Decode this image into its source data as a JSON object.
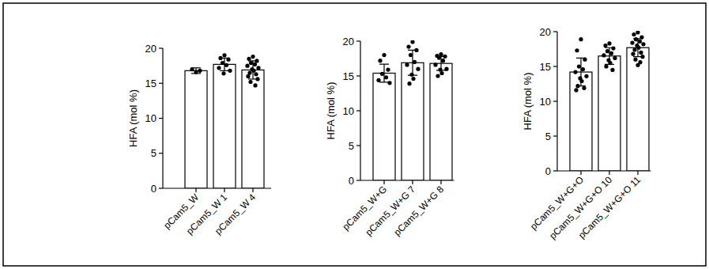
{
  "chart_data": [
    {
      "type": "bar",
      "y_label": "HFA (mol %)",
      "color": "#ffffff",
      "categories": [
        "pCam5_W",
        "pCam5_W 1",
        "pCam5_W 4"
      ],
      "values": [
        16.8,
        17.7,
        16.9
      ],
      "errors": [
        0.4,
        0.9,
        1.3
      ],
      "points": [
        [
          16.6,
          17.0,
          16.8
        ],
        [
          19.0,
          18.6,
          18.4,
          17.9,
          17.6,
          17.2,
          16.8,
          16.4
        ],
        [
          18.8,
          18.5,
          18.2,
          17.9,
          17.7,
          17.5,
          17.2,
          17.0,
          16.8,
          16.5,
          16.3,
          16.0,
          15.6,
          15.2,
          14.7
        ]
      ],
      "ylim": [
        0,
        20
      ],
      "yticks": [
        0,
        5,
        10,
        15,
        20
      ]
    },
    {
      "type": "bar",
      "y_label": "HFA (mol %)",
      "color": "#ffffff",
      "categories": [
        "pCam5_W+G",
        "pCam5_W+G 7",
        "pCam5_W+G 8"
      ],
      "values": [
        15.4,
        16.9,
        16.8
      ],
      "errors": [
        1.3,
        1.8,
        1.0
      ],
      "points": [
        [
          18.0,
          17.2,
          15.9,
          15.3,
          14.8,
          14.4,
          14.0
        ],
        [
          19.9,
          19.2,
          18.7,
          18.0,
          17.0,
          16.6,
          16.0,
          15.2,
          14.6,
          13.9
        ],
        [
          18.1,
          17.9,
          17.8,
          17.6,
          17.2,
          16.6,
          16.0,
          15.9,
          15.4,
          15.0
        ]
      ],
      "ylim": [
        0,
        20
      ],
      "yticks": [
        0,
        5,
        10,
        15,
        20
      ]
    },
    {
      "type": "bar",
      "y_label": "HFA (mol %)",
      "color": "#ffffff",
      "categories": [
        "pCam5_W+G+O",
        "pCam5_W+G+O 10",
        "pCam5_W+G+O 11"
      ],
      "values": [
        14.2,
        16.5,
        17.7
      ],
      "errors": [
        2.0,
        1.2,
        1.3
      ],
      "points": [
        [
          18.9,
          17.3,
          16.0,
          15.0,
          14.6,
          14.2,
          13.6,
          13.3,
          12.9,
          12.2,
          11.9,
          11.6
        ],
        [
          18.3,
          18.0,
          17.6,
          17.2,
          16.9,
          16.6,
          16.2,
          15.9,
          15.5,
          15.0,
          14.5
        ],
        [
          19.9,
          19.6,
          19.2,
          18.9,
          18.6,
          18.4,
          18.2,
          18.0,
          17.7,
          17.4,
          17.0,
          16.8,
          16.4,
          16.0,
          15.6,
          15.2
        ]
      ],
      "ylim": [
        0,
        20
      ],
      "yticks": [
        0,
        5,
        10,
        15,
        20
      ]
    }
  ]
}
